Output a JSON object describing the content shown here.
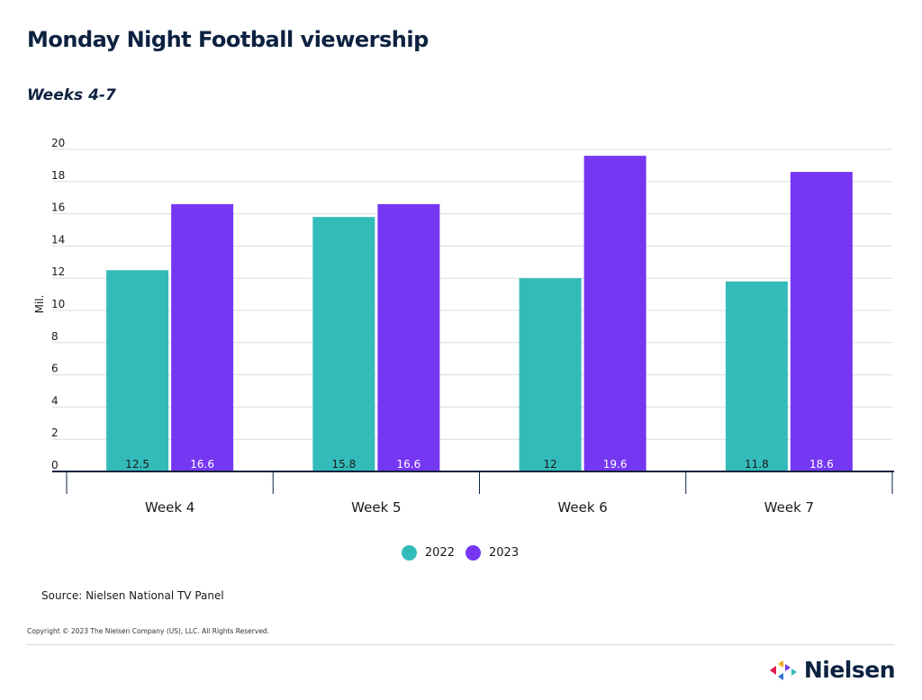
{
  "header": {
    "title": "Monday Night Football viewership",
    "subtitle": "Weeks 4-7"
  },
  "chart_data": {
    "type": "bar",
    "title": "Monday Night Football viewership",
    "subtitle": "Weeks 4-7",
    "xlabel": "",
    "ylabel": "Mil.",
    "ylim": [
      0,
      20
    ],
    "yticks": [
      0,
      2,
      4,
      6,
      8,
      10,
      12,
      14,
      16,
      18,
      20
    ],
    "categories": [
      "Week 4",
      "Week 5",
      "Week 6",
      "Week 7"
    ],
    "series": [
      {
        "name": "2022",
        "color": "#33bbba",
        "values": [
          12.5,
          15.8,
          12,
          11.8
        ],
        "labels": [
          "12.5",
          "15.8",
          "12",
          "11.8"
        ]
      },
      {
        "name": "2023",
        "color": "#7637f3",
        "values": [
          16.6,
          16.6,
          19.6,
          18.6
        ],
        "labels": [
          "16.6",
          "16.6",
          "19.6",
          "18.6"
        ]
      }
    ],
    "grid": true,
    "legend_position": "bottom-center"
  },
  "legend": [
    {
      "label": "2022",
      "color": "#33bbba"
    },
    {
      "label": "2023",
      "color": "#7637f3"
    }
  ],
  "footer": {
    "source": "Source: Nielsen National TV Panel",
    "copyright": "Copyright © 2023 The Nielsen Company (US), LLC. All Rights Reserved.",
    "logo_text": "Nielsen"
  }
}
